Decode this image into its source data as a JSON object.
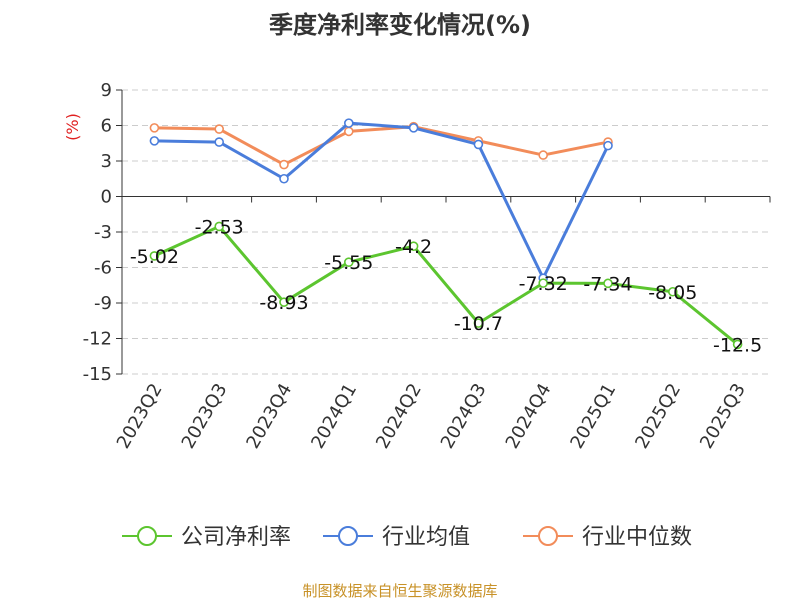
{
  "chart_data": {
    "type": "line",
    "title": "季度净利率变化情况(%)",
    "ylabel": "(%)",
    "ylim": [
      -15,
      9
    ],
    "yticks": [
      9,
      6,
      3,
      0,
      -3,
      -6,
      -9,
      -12,
      -15
    ],
    "ytick_labels": [
      "9",
      "6",
      "3",
      "0",
      "-3",
      "-6",
      "-9",
      "-12",
      "-15"
    ],
    "categories": [
      "2023Q2",
      "2023Q3",
      "2023Q4",
      "2024Q1",
      "2024Q2",
      "2024Q3",
      "2024Q4",
      "2025Q1",
      "2025Q2",
      "2025Q3"
    ],
    "grid": true,
    "legend_position": "bottom",
    "series": [
      {
        "name": "公司净利率",
        "color": "#5cc52f",
        "values": [
          -5.02,
          -2.53,
          -8.93,
          -5.55,
          -4.2,
          -10.7,
          -7.32,
          -7.34,
          -8.05,
          -12.5
        ],
        "labels": [
          "-5.02",
          "-2.53",
          "-8.93",
          "-5.55",
          "-4.2",
          "-10.7",
          "-7.32",
          "-7.34",
          "-8.05",
          "-12.5"
        ]
      },
      {
        "name": "行业均值",
        "color": "#4a7ddb",
        "values": [
          4.7,
          4.6,
          1.5,
          6.2,
          5.8,
          4.4,
          -6.9,
          4.3,
          null,
          null
        ]
      },
      {
        "name": "行业中位数",
        "color": "#f28c5a",
        "values": [
          5.8,
          5.7,
          2.7,
          5.5,
          5.9,
          4.7,
          3.5,
          4.6,
          null,
          null
        ]
      }
    ]
  },
  "colors": {
    "unit_label": "#e02020",
    "source": "#c89228",
    "grid": "#cccccc",
    "axis": "#333333"
  },
  "source_text": "制图数据来自恒生聚源数据库"
}
